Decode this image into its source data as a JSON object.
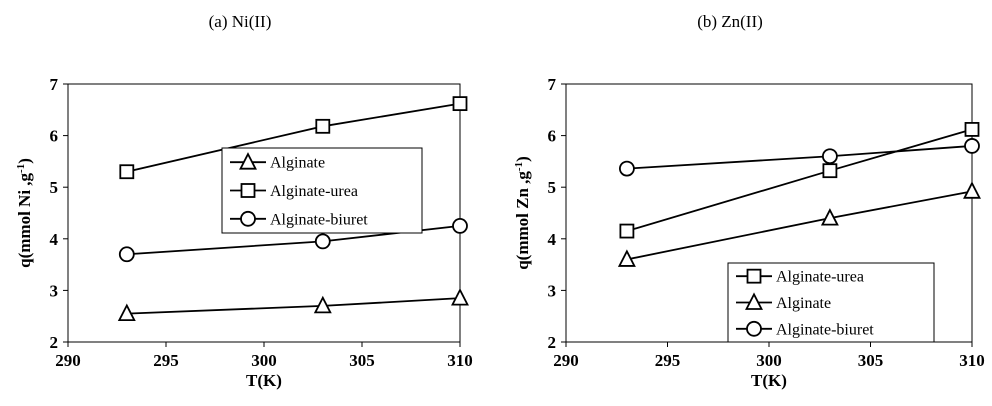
{
  "chart_data": [
    {
      "type": "line",
      "title": "(a)  Ni(II)",
      "xlabel": "T(K)",
      "ylabel_main": "q(mmol Ni ,g",
      "ylabel_sup": "-1",
      "ylabel_end": ")",
      "xlim": [
        290,
        310
      ],
      "ylim": [
        2,
        7
      ],
      "xticks": [
        "290",
        "295",
        "300",
        "305",
        "310"
      ],
      "yticks": [
        "2",
        "3",
        "4",
        "5",
        "6",
        "7"
      ],
      "grid": false,
      "legend_position": "center-right",
      "series": [
        {
          "name": "Alginate",
          "marker": "triangle",
          "x": [
            293,
            303,
            310
          ],
          "y": [
            2.55,
            2.7,
            2.85
          ]
        },
        {
          "name": "Alginate-urea",
          "marker": "square",
          "x": [
            293,
            303,
            310
          ],
          "y": [
            5.3,
            6.18,
            6.62
          ]
        },
        {
          "name": "Alginate-biuret",
          "marker": "circle",
          "x": [
            293,
            303,
            310
          ],
          "y": [
            3.7,
            3.95,
            4.25
          ]
        }
      ]
    },
    {
      "type": "line",
      "title": "(b) Zn(II)",
      "xlabel": "T(K)",
      "ylabel_main": "q(mmol Zn ,g",
      "ylabel_sup": "-1",
      "ylabel_end": ")",
      "xlim": [
        290,
        310
      ],
      "ylim": [
        2,
        7
      ],
      "xticks": [
        "290",
        "295",
        "300",
        "305",
        "310"
      ],
      "yticks": [
        "2",
        "3",
        "4",
        "5",
        "6",
        "7"
      ],
      "grid": false,
      "legend_position": "bottom-right",
      "series": [
        {
          "name": "Alginate-urea",
          "marker": "square",
          "x": [
            293,
            303,
            310
          ],
          "y": [
            4.15,
            5.32,
            6.12
          ]
        },
        {
          "name": "Alginate",
          "marker": "triangle",
          "x": [
            293,
            303,
            310
          ],
          "y": [
            3.6,
            4.4,
            4.92
          ]
        },
        {
          "name": "Alginate-biuret",
          "marker": "circle",
          "x": [
            293,
            303,
            310
          ],
          "y": [
            5.36,
            5.6,
            5.8
          ]
        }
      ]
    }
  ]
}
